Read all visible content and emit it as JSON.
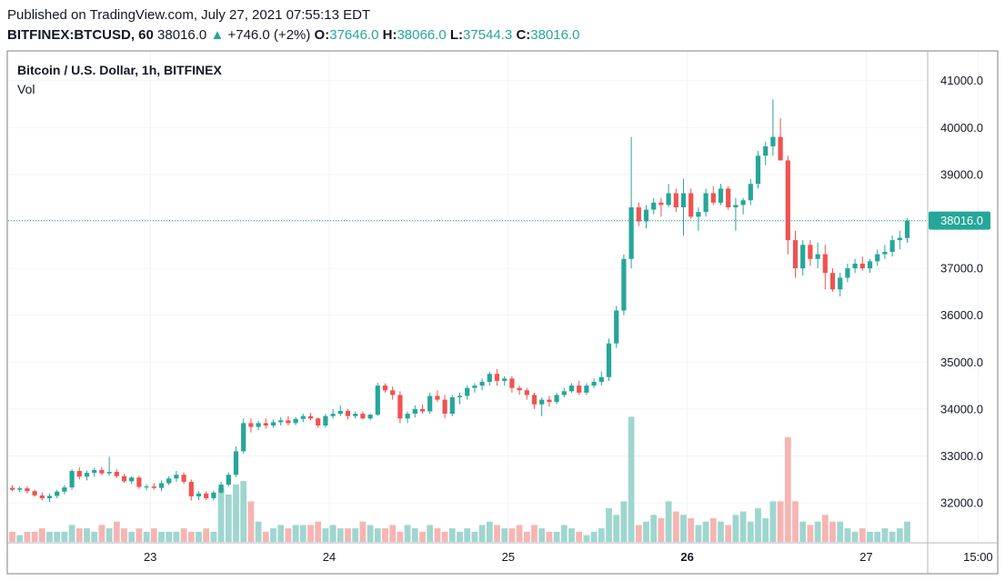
{
  "header": {
    "published": "Published on TradingView.com, July 27, 2021 07:55:13 EDT",
    "symbol": "BITFINEX:BTCUSD, 60",
    "last": "38016.0",
    "change_arrow": "▲",
    "change": "+746.0 (+2%)",
    "o_label": "O:",
    "o_value": "37646.0",
    "h_label": "H:",
    "h_value": "38066.0",
    "l_label": "L:",
    "l_value": "37544.3",
    "c_label": "C:",
    "c_value": "38016.0"
  },
  "colors": {
    "up": "#26a69a",
    "down": "#ef5350",
    "vol_up": "#9fd6cf",
    "vol_down": "#f5b5b3",
    "grid": "#f0f3fa",
    "price_tag": "#26a69a"
  },
  "chart_data": {
    "type": "candlestick",
    "title": "Bitcoin / U.S. Dollar, 1h, BITFINEX",
    "volume_label": "Vol",
    "y_ticks": [
      "41000.0",
      "40000.0",
      "39000.0",
      "38000.0",
      "37000.0",
      "36000.0",
      "35000.0",
      "34000.0",
      "33000.0",
      "32000.0"
    ],
    "y_tick_values": [
      41000,
      40000,
      39000,
      38000,
      37000,
      36000,
      35000,
      34000,
      33000,
      32000
    ],
    "ylim": [
      31200,
      41700
    ],
    "x_ticks": [
      {
        "label": "23",
        "x": 18.5,
        "bold": false
      },
      {
        "label": "24",
        "x": 42.5,
        "bold": false
      },
      {
        "label": "25",
        "x": 66.5,
        "bold": false
      },
      {
        "label": "26",
        "x": 90.5,
        "bold": true
      },
      {
        "label": "27",
        "x": 114.5,
        "bold": false
      },
      {
        "label": "15:00",
        "x": 129.5,
        "bold": false
      }
    ],
    "last_price_label": "38016.0",
    "last_price": 38016,
    "candles": [
      [
        32320,
        32380,
        32250,
        32280,
        3
      ],
      [
        32280,
        32350,
        32230,
        32310,
        2
      ],
      [
        32310,
        32360,
        32200,
        32250,
        3
      ],
      [
        32250,
        32280,
        32130,
        32160,
        3
      ],
      [
        32160,
        32220,
        32050,
        32100,
        4
      ],
      [
        32100,
        32200,
        32020,
        32150,
        3
      ],
      [
        32150,
        32280,
        32100,
        32240,
        3
      ],
      [
        32240,
        32380,
        32180,
        32330,
        3
      ],
      [
        32330,
        32720,
        32280,
        32680,
        5
      ],
      [
        32680,
        32760,
        32500,
        32560,
        4
      ],
      [
        32560,
        32690,
        32480,
        32640,
        4
      ],
      [
        32640,
        32750,
        32560,
        32700,
        3
      ],
      [
        32700,
        32760,
        32590,
        32630,
        5
      ],
      [
        32630,
        32980,
        32580,
        32660,
        4
      ],
      [
        32660,
        32720,
        32530,
        32570,
        6
      ],
      [
        32570,
        32620,
        32430,
        32460,
        4
      ],
      [
        32460,
        32570,
        32400,
        32540,
        3
      ],
      [
        32540,
        32580,
        32300,
        32340,
        4
      ],
      [
        32340,
        32400,
        32270,
        32350,
        3
      ],
      [
        32350,
        32420,
        32280,
        32320,
        4
      ],
      [
        32320,
        32480,
        32250,
        32420,
        3
      ],
      [
        32420,
        32570,
        32380,
        32520,
        3
      ],
      [
        32520,
        32680,
        32450,
        32600,
        3
      ],
      [
        32600,
        32650,
        32400,
        32450,
        4
      ],
      [
        32450,
        32500,
        32050,
        32140,
        3
      ],
      [
        32140,
        32250,
        32060,
        32200,
        3
      ],
      [
        32200,
        32250,
        32060,
        32100,
        4
      ],
      [
        32100,
        32260,
        32050,
        32220,
        3
      ],
      [
        32220,
        32450,
        32200,
        32390,
        16
      ],
      [
        32390,
        32650,
        32350,
        32600,
        14
      ],
      [
        32600,
        33200,
        32550,
        33100,
        17
      ],
      [
        33100,
        33800,
        33050,
        33700,
        18
      ],
      [
        33700,
        33800,
        33500,
        33620,
        12
      ],
      [
        33620,
        33750,
        33550,
        33700,
        6
      ],
      [
        33700,
        33800,
        33580,
        33650,
        3
      ],
      [
        33650,
        33780,
        33600,
        33720,
        4
      ],
      [
        33720,
        33830,
        33650,
        33760,
        5
      ],
      [
        33760,
        33850,
        33650,
        33700,
        4
      ],
      [
        33700,
        33830,
        33660,
        33790,
        5
      ],
      [
        33790,
        33900,
        33720,
        33850,
        5
      ],
      [
        33850,
        33920,
        33760,
        33800,
        5
      ],
      [
        33800,
        33820,
        33600,
        33650,
        6
      ],
      [
        33650,
        33900,
        33600,
        33850,
        4
      ],
      [
        33850,
        34000,
        33800,
        33900,
        5
      ],
      [
        33900,
        34080,
        33850,
        33960,
        4
      ],
      [
        33960,
        34000,
        33780,
        33850,
        4
      ],
      [
        33850,
        33950,
        33800,
        33900,
        4
      ],
      [
        33900,
        33950,
        33780,
        33800,
        6
      ],
      [
        33800,
        33900,
        33760,
        33880,
        5
      ],
      [
        33880,
        34560,
        33850,
        34500,
        4
      ],
      [
        34500,
        34550,
        34350,
        34400,
        4
      ],
      [
        34400,
        34480,
        34200,
        34300,
        5
      ],
      [
        34300,
        34380,
        33700,
        33800,
        3
      ],
      [
        33800,
        33950,
        33700,
        33900,
        5
      ],
      [
        33900,
        34080,
        33820,
        34000,
        4
      ],
      [
        34000,
        34100,
        33900,
        33950,
        3
      ],
      [
        33950,
        34350,
        33900,
        34280,
        5
      ],
      [
        34280,
        34400,
        34150,
        34200,
        4
      ],
      [
        34200,
        34300,
        33800,
        33900,
        3
      ],
      [
        33900,
        34300,
        33850,
        34250,
        4
      ],
      [
        34250,
        34350,
        34100,
        34280,
        3
      ],
      [
        34280,
        34500,
        34200,
        34450,
        4
      ],
      [
        34450,
        34550,
        34350,
        34500,
        3
      ],
      [
        34500,
        34650,
        34400,
        34580,
        5
      ],
      [
        34580,
        34800,
        34500,
        34750,
        6
      ],
      [
        34750,
        34850,
        34500,
        34600,
        5
      ],
      [
        34600,
        34700,
        34500,
        34650,
        4
      ],
      [
        34650,
        34700,
        34350,
        34450,
        4
      ],
      [
        34450,
        34500,
        34300,
        34400,
        5
      ],
      [
        34400,
        34450,
        34200,
        34300,
        3
      ],
      [
        34300,
        34350,
        34000,
        34100,
        5
      ],
      [
        34100,
        34250,
        33850,
        34200,
        4
      ],
      [
        34200,
        34280,
        34050,
        34150,
        3
      ],
      [
        34150,
        34350,
        34100,
        34300,
        3
      ],
      [
        34300,
        34450,
        34250,
        34380,
        5
      ],
      [
        34380,
        34550,
        34350,
        34500,
        4
      ],
      [
        34500,
        34600,
        34300,
        34350,
        3
      ],
      [
        34350,
        34550,
        34300,
        34500,
        2
      ],
      [
        34500,
        34650,
        34450,
        34580,
        3
      ],
      [
        34580,
        34800,
        34500,
        34680,
        4
      ],
      [
        34680,
        35500,
        34600,
        35400,
        10
      ],
      [
        35400,
        36200,
        35300,
        36100,
        8
      ],
      [
        36100,
        37300,
        36000,
        37200,
        12
      ],
      [
        37200,
        39800,
        37000,
        38300,
        37
      ],
      [
        38300,
        38400,
        37900,
        38000,
        5
      ],
      [
        38000,
        38350,
        37850,
        38250,
        6
      ],
      [
        38250,
        38500,
        38150,
        38400,
        8
      ],
      [
        38400,
        38500,
        38100,
        38350,
        7
      ],
      [
        38350,
        38800,
        38300,
        38600,
        12
      ],
      [
        38600,
        38700,
        38200,
        38300,
        9
      ],
      [
        38300,
        38900,
        37700,
        38600,
        8
      ],
      [
        38600,
        38700,
        38050,
        38100,
        7
      ],
      [
        38100,
        38300,
        37800,
        38200,
        5
      ],
      [
        38200,
        38700,
        38100,
        38600,
        6
      ],
      [
        38600,
        38750,
        38350,
        38400,
        7
      ],
      [
        38400,
        38800,
        38350,
        38700,
        6
      ],
      [
        38700,
        38750,
        38250,
        38300,
        5
      ],
      [
        38300,
        38500,
        37800,
        38350,
        8
      ],
      [
        38350,
        38500,
        38150,
        38450,
        9
      ],
      [
        38450,
        38900,
        38350,
        38800,
        6
      ],
      [
        38800,
        39500,
        38700,
        39400,
        10
      ],
      [
        39400,
        39700,
        39200,
        39600,
        7
      ],
      [
        39600,
        40600,
        39400,
        39800,
        12
      ],
      [
        39800,
        40200,
        39300,
        39300,
        12
      ],
      [
        39300,
        39400,
        37300,
        37600,
        31
      ],
      [
        37600,
        37800,
        36800,
        37000,
        12
      ],
      [
        37000,
        37600,
        36850,
        37500,
        6
      ],
      [
        37500,
        37600,
        37050,
        37200,
        5
      ],
      [
        37200,
        37550,
        37000,
        37300,
        6
      ],
      [
        37300,
        37500,
        36550,
        36900,
        8
      ],
      [
        36900,
        37000,
        36500,
        36550,
        6
      ],
      [
        36550,
        36900,
        36400,
        36800,
        6
      ],
      [
        36800,
        37100,
        36700,
        37000,
        4
      ],
      [
        37000,
        37200,
        36900,
        37100,
        3
      ],
      [
        37100,
        37250,
        36950,
        37000,
        4
      ],
      [
        37000,
        37200,
        36900,
        37150,
        3
      ],
      [
        37150,
        37400,
        37050,
        37300,
        3
      ],
      [
        37300,
        37500,
        37200,
        37350,
        4
      ],
      [
        37350,
        37700,
        37250,
        37600,
        3
      ],
      [
        37600,
        37800,
        37400,
        37650,
        4
      ],
      [
        37646,
        38066,
        37544,
        38016,
        6
      ]
    ]
  }
}
